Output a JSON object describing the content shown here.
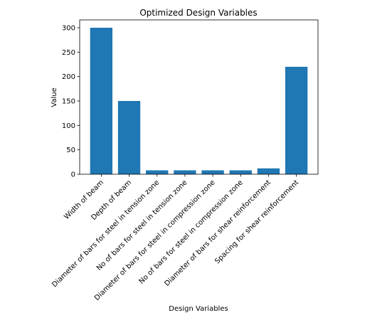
{
  "chart_data": {
    "type": "bar",
    "title": "Optimized Design Variables",
    "xlabel": "Design Variables",
    "ylabel": "Value",
    "categories": [
      "Width of beam",
      "Depth of beam",
      "Diameter of bars for steel in tension zone",
      "No of bars for steel in tension zone",
      "Diameter of bars for steel in compression zone",
      "No of bars for steel in compression zone",
      "Diameter of bars for shear reinforcement",
      "Spacing for shear reinforcement"
    ],
    "values": [
      300,
      150,
      8,
      8,
      8,
      8,
      12,
      220
    ],
    "ylim": [
      0,
      316
    ],
    "yticks": [
      0,
      50,
      100,
      150,
      200,
      250,
      300
    ],
    "grid": false,
    "bar_color": "#1f77b4"
  }
}
